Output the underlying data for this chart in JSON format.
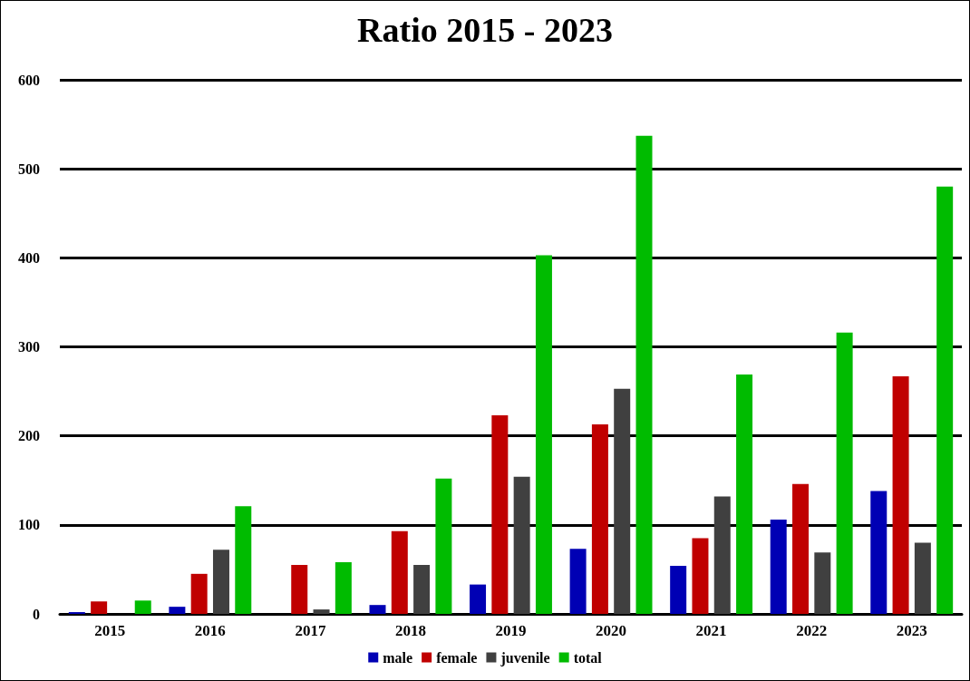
{
  "chart_data": {
    "type": "bar",
    "title": "Ratio 2015 - 2023",
    "categories": [
      "2015",
      "2016",
      "2017",
      "2018",
      "2019",
      "2020",
      "2021",
      "2022",
      "2023"
    ],
    "series": [
      {
        "name": "male",
        "color": "#0000b4",
        "values": [
          2,
          8,
          0,
          10,
          33,
          73,
          54,
          106,
          138
        ]
      },
      {
        "name": "female",
        "color": "#c00000",
        "values": [
          14,
          45,
          55,
          93,
          223,
          213,
          85,
          146,
          267
        ]
      },
      {
        "name": "juvenile",
        "color": "#404040",
        "values": [
          0,
          72,
          5,
          55,
          154,
          253,
          132,
          69,
          80
        ]
      },
      {
        "name": "total",
        "color": "#00bb00",
        "values": [
          15,
          121,
          58,
          152,
          403,
          537,
          269,
          316,
          480
        ]
      }
    ],
    "ylim": [
      0,
      600
    ],
    "yticks": [
      0,
      100,
      200,
      300,
      400,
      500,
      600
    ],
    "grid": "y",
    "legend": "bottom"
  }
}
